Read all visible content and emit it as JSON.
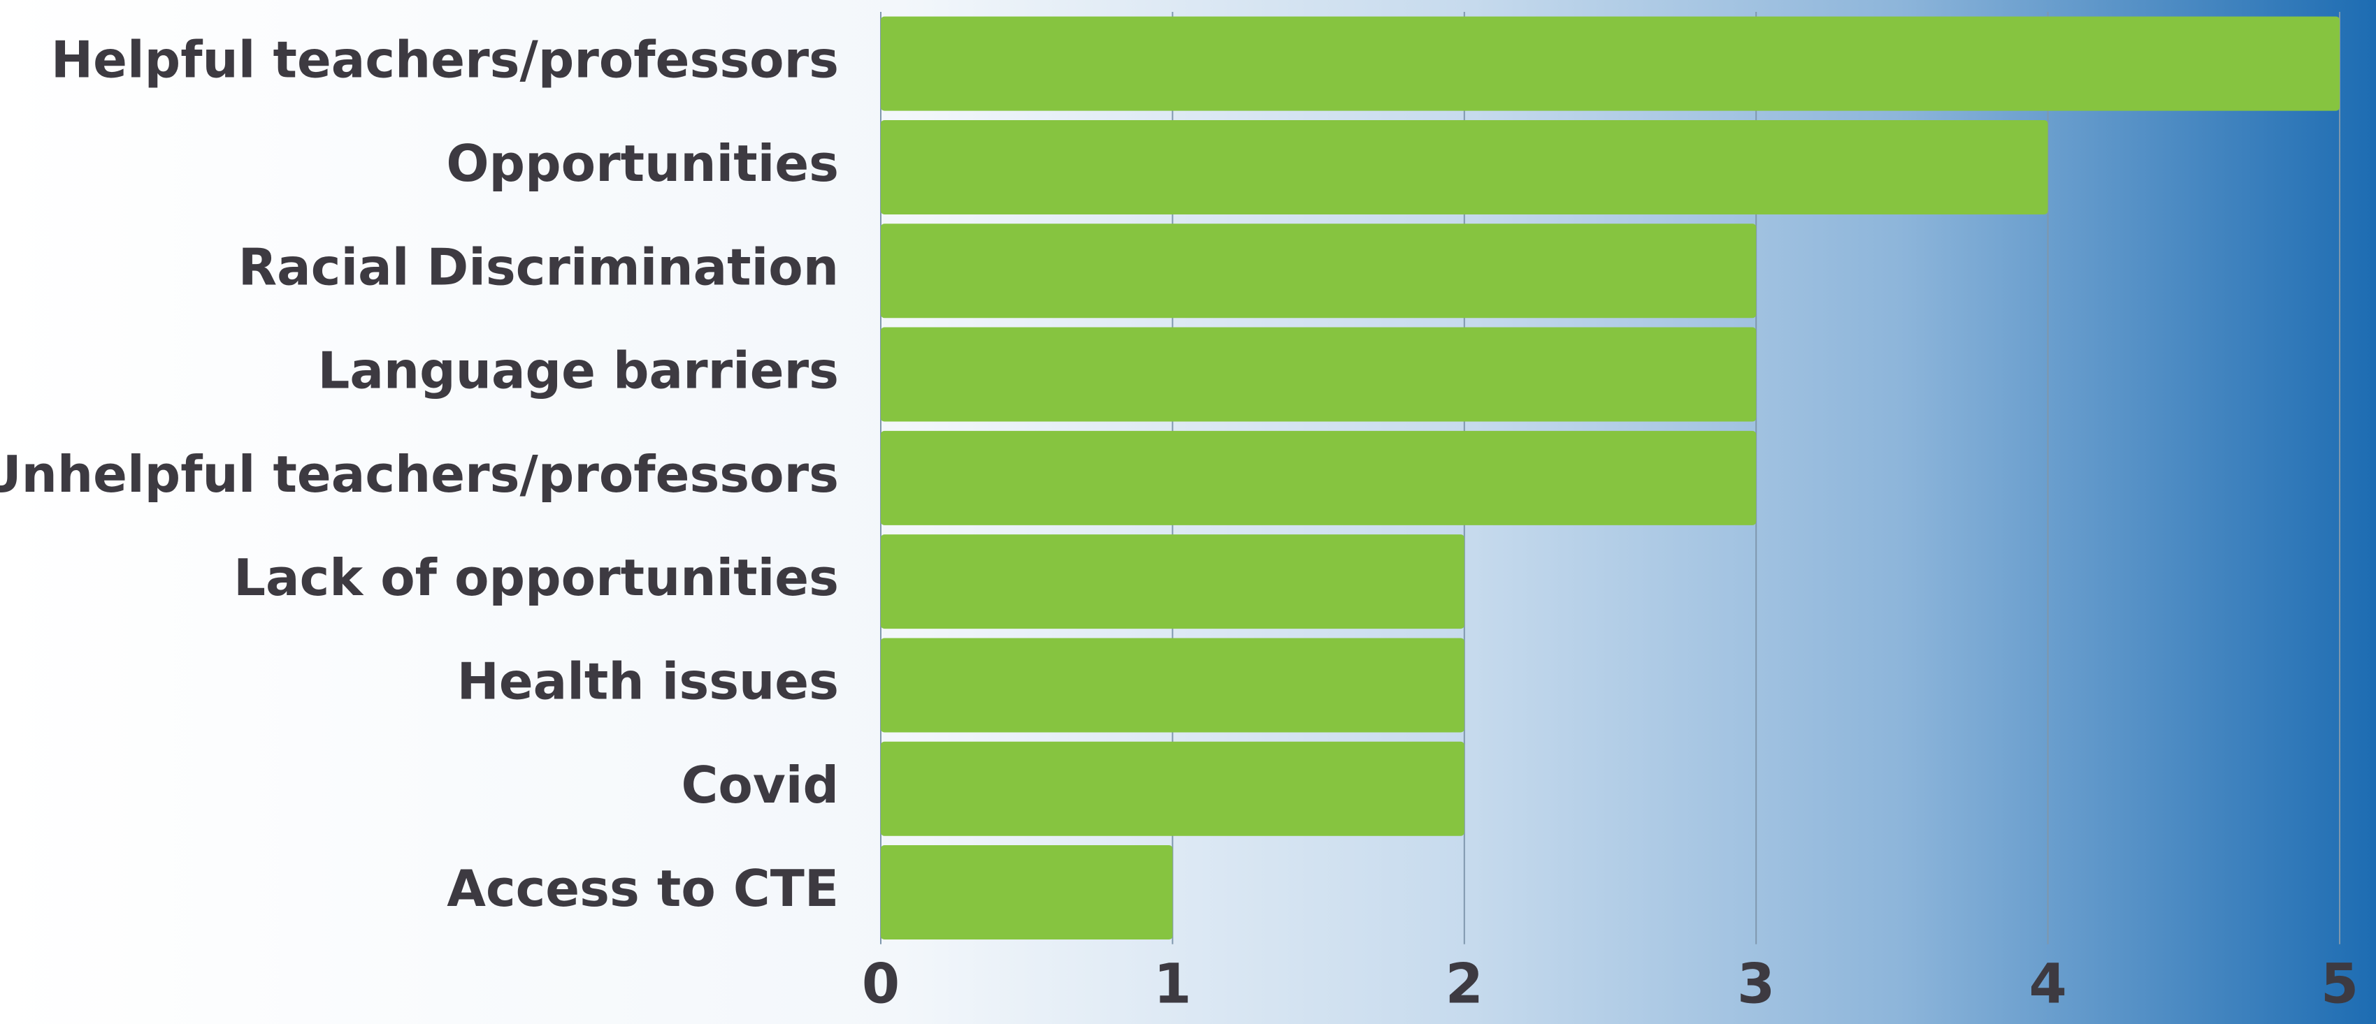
{
  "chart_data": {
    "type": "bar",
    "orientation": "horizontal",
    "categories": [
      "Helpful teachers/professors",
      "Opportunities",
      "Racial Discrimination",
      "Language barriers",
      "Unhelpful teachers/professors",
      "Lack of opportunities",
      "Health issues",
      "Covid",
      "Access to CTE"
    ],
    "values": [
      5,
      4,
      3,
      3,
      3,
      2,
      2,
      2,
      1
    ],
    "color": "#86c440",
    "xlim": [
      0,
      5
    ],
    "xticks": [
      0,
      1,
      2,
      3,
      4,
      5
    ],
    "grid": true
  }
}
